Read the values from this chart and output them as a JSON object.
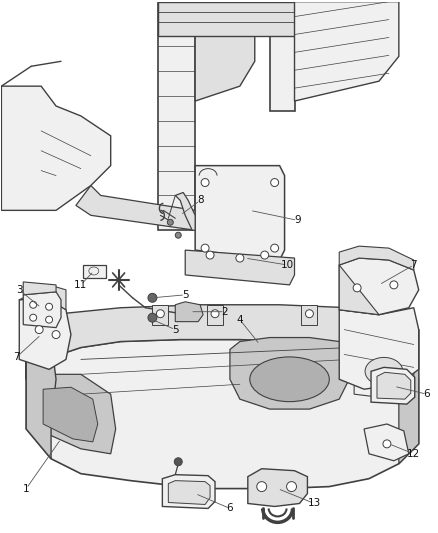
{
  "bg_color": "#ffffff",
  "line_color": "#404040",
  "fill_light": "#f0f0f0",
  "fill_mid": "#e0e0e0",
  "fill_dark": "#c8c8c8",
  "fill_darker": "#b0b0b0",
  "label_fontsize": 7.5,
  "fig_width": 4.38,
  "fig_height": 5.33,
  "dpi": 100
}
